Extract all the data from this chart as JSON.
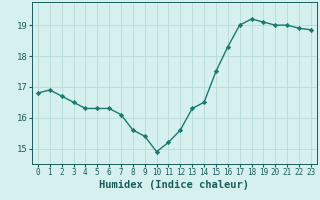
{
  "x": [
    0,
    1,
    2,
    3,
    4,
    5,
    6,
    7,
    8,
    9,
    10,
    11,
    12,
    13,
    14,
    15,
    16,
    17,
    18,
    19,
    20,
    21,
    22,
    23
  ],
  "y": [
    16.8,
    16.9,
    16.7,
    16.5,
    16.3,
    16.3,
    16.3,
    16.1,
    15.6,
    15.4,
    14.9,
    15.2,
    15.6,
    16.3,
    16.5,
    17.5,
    18.3,
    19.0,
    19.2,
    19.1,
    19.0,
    19.0,
    18.9,
    18.85
  ],
  "line_color": "#1a7a6e",
  "marker": "D",
  "marker_size": 2.2,
  "bg_color": "#d6f0ef",
  "grid_color": "#b8dbd8",
  "tick_color": "#1a5e5a",
  "xlabel": "Humidex (Indice chaleur)",
  "xlabel_fontsize": 7.5,
  "ytick_fontsize": 6.5,
  "xtick_fontsize": 5.5,
  "ylabel_ticks": [
    15,
    16,
    17,
    18,
    19
  ],
  "xlim": [
    -0.5,
    23.5
  ],
  "ylim": [
    14.5,
    19.75
  ]
}
